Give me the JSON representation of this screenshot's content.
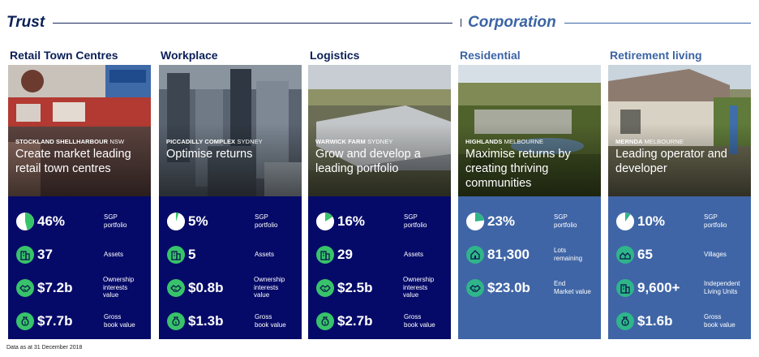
{
  "trust_heading": "Trust",
  "corporation_heading": "Corporation",
  "columns": [
    {
      "key": "retail",
      "group": "trust",
      "title": "Retail Town Centres",
      "location": "STOCKLAND SHELLHARBOUR",
      "city": "NSW",
      "tagline": "Create market leading retail town centres",
      "stats": [
        {
          "icon": "pie-chart-icon",
          "value": "46%",
          "label": "SGP\nportfolio",
          "fraction": 0.46
        },
        {
          "icon": "building-icon",
          "value": "37",
          "label": "Assets"
        },
        {
          "icon": "handshake-icon",
          "value": "$7.2b",
          "label": "Ownership\ninterests value"
        },
        {
          "icon": "money-bag-icon",
          "value": "$7.7b",
          "label": "Gross\nbook value"
        }
      ]
    },
    {
      "key": "workplace",
      "group": "trust",
      "title": "Workplace",
      "location": "PICCADILLY COMPLEX",
      "city": "SYDNEY",
      "tagline": "Optimise returns",
      "stats": [
        {
          "icon": "pie-chart-icon",
          "value": "5%",
          "label": "SGP\nportfolio",
          "fraction": 0.05
        },
        {
          "icon": "building-icon",
          "value": "5",
          "label": "Assets"
        },
        {
          "icon": "handshake-icon",
          "value": "$0.8b",
          "label": "Ownership\ninterests value"
        },
        {
          "icon": "money-bag-icon",
          "value": "$1.3b",
          "label": "Gross\nbook value"
        }
      ]
    },
    {
      "key": "logistics",
      "group": "trust",
      "title": "Logistics",
      "location": "WARWICK FARM",
      "city": "SYDNEY",
      "tagline": "Grow and develop a leading portfolio",
      "stats": [
        {
          "icon": "pie-chart-icon",
          "value": "16%",
          "label": "SGP\nportfolio",
          "fraction": 0.16
        },
        {
          "icon": "building-icon",
          "value": "29",
          "label": "Assets"
        },
        {
          "icon": "handshake-icon",
          "value": "$2.5b",
          "label": "Ownership\ninterests value"
        },
        {
          "icon": "money-bag-icon",
          "value": "$2.7b",
          "label": "Gross\nbook value"
        }
      ]
    },
    {
      "key": "residential",
      "group": "corp",
      "title": "Residential",
      "location": "HIGHLANDS",
      "city": "MELBOURNE",
      "tagline": "Maximise returns by creating thriving communities",
      "stats": [
        {
          "icon": "pie-chart-icon",
          "value": "23%",
          "label": "SGP\nportfolio",
          "fraction": 0.23
        },
        {
          "icon": "house-icon",
          "value": "81,300",
          "label": "Lots\nremaining"
        },
        {
          "icon": "handshake-icon",
          "value": "$23.0b",
          "label": "End\nMarket value"
        }
      ]
    },
    {
      "key": "retirement",
      "group": "corp",
      "title": "Retirement living",
      "location": "MERNDA",
      "city": "MELBOURNE",
      "tagline": "Leading operator and developer",
      "stats": [
        {
          "icon": "pie-chart-icon",
          "value": "10%",
          "label": "SGP\nportfolio",
          "fraction": 0.1
        },
        {
          "icon": "village-icon",
          "value": "65",
          "label": "Villages"
        },
        {
          "icon": "building-icon",
          "value": "9,600+",
          "label": "Independent\nLiving Units"
        },
        {
          "icon": "money-bag-icon",
          "value": "$1.6b",
          "label": "Gross\nbook value"
        }
      ]
    }
  ],
  "footnote": "Data as at 31 December 2018",
  "colors": {
    "trust_panel": "#050a68",
    "corp_panel": "#3f65a6",
    "trust_heading": "#0b1f57",
    "corp_heading": "#3b64a4",
    "icon_green": "#38c36a"
  }
}
